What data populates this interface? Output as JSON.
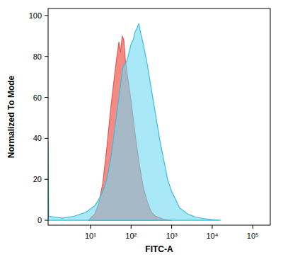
{
  "chart_data": {
    "type": "area",
    "x_label": "FITC-A",
    "y_label": "Normalized To Mode",
    "log": "x",
    "xlim": [
      0.9,
      270000
    ],
    "ylim": [
      -2.4,
      103.4
    ],
    "xticks": [
      {
        "value": 10,
        "label": "10¹"
      },
      {
        "value": 100,
        "label": "10²"
      },
      {
        "value": 1000,
        "label": "10³"
      },
      {
        "value": 10000,
        "label": "10⁴"
      },
      {
        "value": 100000,
        "label": "10⁵"
      }
    ],
    "yticks": [
      0,
      20,
      40,
      60,
      80,
      100
    ],
    "series": [
      {
        "color": "#f4847e",
        "x": [
          8.9,
          10,
          12.6,
          15.8,
          20,
          25.1,
          31.6,
          39.8,
          44.7,
          50.1,
          55,
          60.3,
          66.1,
          72.4,
          79.4,
          100,
          126,
          158,
          200,
          251,
          316,
          398,
          631,
          1000
        ],
        "values": [
          0,
          1,
          3,
          8,
          18,
          35,
          55,
          72,
          80,
          87,
          82,
          90,
          88,
          78,
          72,
          58,
          42,
          28,
          16,
          9,
          4,
          2,
          0.5,
          0
        ]
      },
      {
        "color": "#6fd9f2",
        "x": [
          0.9,
          0.93,
          2,
          4,
          7.9,
          12.6,
          15.8,
          20,
          25.1,
          31.6,
          39.8,
          50.1,
          63.1,
          79.4,
          100,
          112,
          126,
          141,
          155,
          178,
          200,
          251,
          316,
          398,
          501,
          631,
          794,
          1000,
          1260,
          1580,
          2510,
          3980,
          6310,
          10000,
          15800
        ],
        "values": [
          38,
          2,
          1,
          2,
          4,
          7,
          10,
          14,
          20,
          30,
          45,
          60,
          75,
          78,
          86,
          88,
          92,
          94,
          96,
          90,
          86,
          76,
          64,
          52,
          40,
          30,
          20,
          14,
          10,
          6,
          3,
          1.5,
          0.8,
          0.3,
          0
        ]
      }
    ]
  }
}
